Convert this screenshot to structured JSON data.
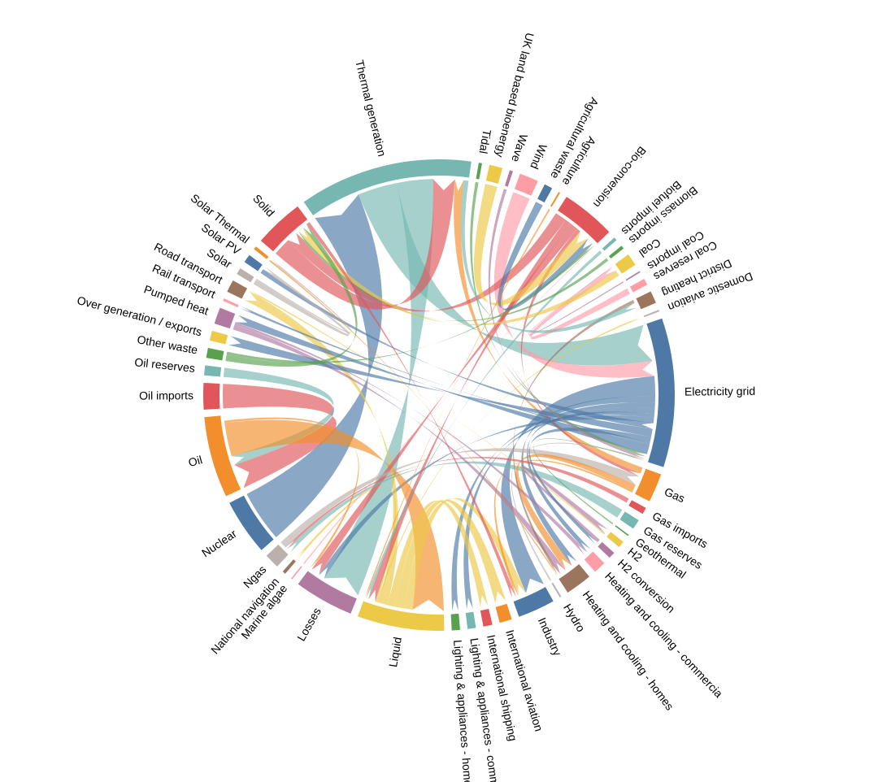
{
  "chart_data": {
    "type": "chord",
    "nodes": [
      {
        "name": "Electricity grid",
        "color": "#4e79a7",
        "weight": 18
      },
      {
        "name": "Gas",
        "color": "#f28e2b",
        "weight": 3.5
      },
      {
        "name": "Gas imports",
        "color": "#e15759",
        "weight": 0.8
      },
      {
        "name": "Gas reserves",
        "color": "#76b7b2",
        "weight": 1.2
      },
      {
        "name": "Geothermal",
        "color": "#59a14f",
        "weight": 0.1
      },
      {
        "name": "H2",
        "color": "#edc948",
        "weight": 0.8
      },
      {
        "name": "H2 conversion",
        "color": "#b07aa1",
        "weight": 0.8
      },
      {
        "name": "Heating and cooling - commercia",
        "color": "#ff9da7",
        "weight": 1.5
      },
      {
        "name": "Heating and cooling - homes",
        "color": "#9c755f",
        "weight": 3.2
      },
      {
        "name": "Hydro",
        "color": "#bab0ac",
        "weight": 0.2
      },
      {
        "name": "Industry",
        "color": "#4e79a7",
        "weight": 4.5
      },
      {
        "name": "International aviation",
        "color": "#f28e2b",
        "weight": 1.5
      },
      {
        "name": "International shipping",
        "color": "#e15759",
        "weight": 1.1
      },
      {
        "name": "Lighting & appliances - commercial",
        "color": "#76b7b2",
        "weight": 1.0
      },
      {
        "name": "Lighting & appliances - homes",
        "color": "#59a14f",
        "weight": 1.0
      },
      {
        "name": "Liquid",
        "color": "#edc948",
        "weight": 10.5
      },
      {
        "name": "Losses",
        "color": "#b07aa1",
        "weight": 7.2
      },
      {
        "name": "Marine algae",
        "color": "#ff9da7",
        "weight": 0.1
      },
      {
        "name": "National navigation",
        "color": "#9c755f",
        "weight": 0.4
      },
      {
        "name": "Ngas",
        "color": "#bab0ac",
        "weight": 1.8
      },
      {
        "name": "Nuclear",
        "color": "#4e79a7",
        "weight": 6.8
      },
      {
        "name": "Oil",
        "color": "#f28e2b",
        "weight": 9.8
      },
      {
        "name": "Oil imports",
        "color": "#e15759",
        "weight": 3.2
      },
      {
        "name": "Oil reserves",
        "color": "#76b7b2",
        "weight": 1.2
      },
      {
        "name": "Other waste",
        "color": "#59a14f",
        "weight": 1.2
      },
      {
        "name": "Over generation / exports",
        "color": "#edc948",
        "weight": 1.2
      },
      {
        "name": "Pumped heat",
        "color": "#b07aa1",
        "weight": 2.0
      },
      {
        "name": "Rail transport",
        "color": "#ff9da7",
        "weight": 0.3
      },
      {
        "name": "Road transport",
        "color": "#9c755f",
        "weight": 1.5
      },
      {
        "name": "Solar",
        "color": "#bab0ac",
        "weight": 0.8
      },
      {
        "name": "Solar PV",
        "color": "#4e79a7",
        "weight": 1.0
      },
      {
        "name": "Solar Thermal",
        "color": "#f28e2b",
        "weight": 0.4
      },
      {
        "name": "Solid",
        "color": "#e15759",
        "weight": 6.0
      },
      {
        "name": "Thermal generation",
        "color": "#76b7b2",
        "weight": 21.0
      },
      {
        "name": "Tidal",
        "color": "#59a14f",
        "weight": 0.4
      },
      {
        "name": "UK land based bioenergy",
        "color": "#edc948",
        "weight": 1.6
      },
      {
        "name": "Wave",
        "color": "#b07aa1",
        "weight": 0.4
      },
      {
        "name": "Wind",
        "color": "#ff9da7",
        "weight": 2.3
      },
      {
        "name": "Agricultural waste",
        "color": "#4e79a7",
        "weight": 1.0
      },
      {
        "name": "Agriculture",
        "color": "#f28e2b",
        "weight": 0.2
      },
      {
        "name": "Bio-conversion",
        "color": "#e15759",
        "weight": 6.6
      },
      {
        "name": "Biofuel imports",
        "color": "#76b7b2",
        "weight": 0.4
      },
      {
        "name": "Biomass imports",
        "color": "#59a14f",
        "weight": 0.4
      },
      {
        "name": "Coal",
        "color": "#edc948",
        "weight": 1.5
      },
      {
        "name": "Coal imports",
        "color": "#b07aa1",
        "weight": 0.1
      },
      {
        "name": "Coal reserves",
        "color": "#ff9da7",
        "weight": 0.8
      },
      {
        "name": "District heating",
        "color": "#9c755f",
        "weight": 1.5
      },
      {
        "name": "Domestic aviation",
        "color": "#bab0ac",
        "weight": 0.2
      }
    ],
    "flows": [
      {
        "source": "Nuclear",
        "target": "Thermal generation",
        "value": 6.8
      },
      {
        "source": "Thermal generation",
        "target": "Electricity grid",
        "value": 5.5
      },
      {
        "source": "Thermal generation",
        "target": "Losses",
        "value": 5.0
      },
      {
        "source": "Solid",
        "target": "Thermal generation",
        "value": 3.0
      },
      {
        "source": "Gas",
        "target": "Thermal generation",
        "value": 1.2
      },
      {
        "source": "Wind",
        "target": "Electricity grid",
        "value": 2.3
      },
      {
        "source": "Electricity grid",
        "target": "Industry",
        "value": 3.0
      },
      {
        "source": "Electricity grid",
        "target": "Heating and cooling - homes",
        "value": 1.0
      },
      {
        "source": "Electricity grid",
        "target": "Lighting & appliances - homes",
        "value": 0.8
      },
      {
        "source": "Electricity grid",
        "target": "Lighting & appliances - commercial",
        "value": 0.8
      },
      {
        "source": "Electricity grid",
        "target": "Heating and cooling - commercia",
        "value": 0.6
      },
      {
        "source": "Electricity grid",
        "target": "Losses",
        "value": 0.8
      },
      {
        "source": "Solar PV",
        "target": "Electricity grid",
        "value": 0.9
      },
      {
        "source": "Oil imports",
        "target": "Oil",
        "value": 3.2
      },
      {
        "source": "Oil reserves",
        "target": "Oil",
        "value": 1.2
      },
      {
        "source": "Oil",
        "target": "Liquid",
        "value": 4.4
      },
      {
        "source": "Liquid",
        "target": "Industry",
        "value": 1.2
      },
      {
        "source": "Liquid",
        "target": "International aviation",
        "value": 1.4
      },
      {
        "source": "Liquid",
        "target": "International shipping",
        "value": 1.0
      },
      {
        "source": "Liquid",
        "target": "Road transport",
        "value": 1.3
      },
      {
        "source": "Liquid",
        "target": "Domestic aviation",
        "value": 0.2
      },
      {
        "source": "Liquid",
        "target": "National navigation",
        "value": 0.3
      },
      {
        "source": "Bio-conversion",
        "target": "Solid",
        "value": 1.8
      },
      {
        "source": "Bio-conversion",
        "target": "Liquid",
        "value": 1.0
      },
      {
        "source": "Bio-conversion",
        "target": "Losses",
        "value": 1.2
      },
      {
        "source": "Bio-conversion",
        "target": "Gas",
        "value": 0.6
      },
      {
        "source": "UK land based bioenergy",
        "target": "Bio-conversion",
        "value": 1.6
      },
      {
        "source": "Agricultural waste",
        "target": "Bio-conversion",
        "value": 1.0
      },
      {
        "source": "Biofuel imports",
        "target": "Liquid",
        "value": 0.4
      },
      {
        "source": "Biomass imports",
        "target": "Solid",
        "value": 0.4
      },
      {
        "source": "Coal imports",
        "target": "Coal",
        "value": 0.1
      },
      {
        "source": "Coal reserves",
        "target": "Coal",
        "value": 0.8
      },
      {
        "source": "Coal",
        "target": "Solid",
        "value": 1.0
      },
      {
        "source": "Gas reserves",
        "target": "Ngas",
        "value": 1.2
      },
      {
        "source": "Gas imports",
        "target": "Ngas",
        "value": 0.6
      },
      {
        "source": "Ngas",
        "target": "Gas",
        "value": 1.8
      },
      {
        "source": "Gas",
        "target": "Heating and cooling - homes",
        "value": 1.2
      },
      {
        "source": "Gas",
        "target": "Industry",
        "value": 0.4
      },
      {
        "source": "Pumped heat",
        "target": "Heating and cooling - homes",
        "value": 1.0
      },
      {
        "source": "Pumped heat",
        "target": "Heating and cooling - commercia",
        "value": 0.5
      },
      {
        "source": "District heating",
        "target": "Heating and cooling - homes",
        "value": 0.4
      },
      {
        "source": "Solar Thermal",
        "target": "Heating and cooling - homes",
        "value": 0.2
      },
      {
        "source": "H2 conversion",
        "target": "H2",
        "value": 0.8
      },
      {
        "source": "H2",
        "target": "Road transport",
        "value": 0.2
      },
      {
        "source": "Electricity grid",
        "target": "Over generation / exports",
        "value": 1.2
      },
      {
        "source": "Electricity grid",
        "target": "H2 conversion",
        "value": 0.8
      },
      {
        "source": "Electricity grid",
        "target": "Rail transport",
        "value": 0.3
      },
      {
        "source": "Electricity grid",
        "target": "Pumped heat",
        "value": 1.5
      },
      {
        "source": "Other waste",
        "target": "Solid",
        "value": 0.8
      },
      {
        "source": "Other waste",
        "target": "Bio-conversion",
        "value": 0.4
      },
      {
        "source": "Solar",
        "target": "Solar PV",
        "value": 0.6
      },
      {
        "source": "Solar",
        "target": "Solar Thermal",
        "value": 0.2
      },
      {
        "source": "Tidal",
        "target": "Electricity grid",
        "value": 0.4
      },
      {
        "source": "Wave",
        "target": "Electricity grid",
        "value": 0.4
      },
      {
        "source": "Hydro",
        "target": "Electricity grid",
        "value": 0.2
      },
      {
        "source": "Geothermal",
        "target": "Electricity grid",
        "value": 0.1
      },
      {
        "source": "Marine algae",
        "target": "Bio-conversion",
        "value": 0.1
      },
      {
        "source": "Agriculture",
        "target": "Liquid",
        "value": 0.2
      },
      {
        "source": "Thermal generation",
        "target": "District heating",
        "value": 0.7
      },
      {
        "source": "Solid",
        "target": "Industry",
        "value": 0.6
      },
      {
        "source": "Oil",
        "target": "Losses",
        "value": 0.3
      }
    ]
  }
}
